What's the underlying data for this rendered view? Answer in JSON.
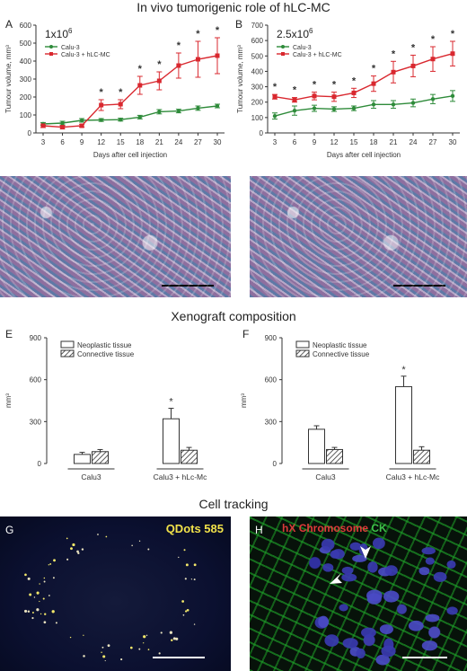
{
  "titles": {
    "main": "In vivo tumorigenic role of hLC-MC",
    "xenograft": "Xenograft composition",
    "tracking": "Cell tracking"
  },
  "panels": {
    "A": "A",
    "B": "B",
    "E": "E",
    "F": "F",
    "G": "G",
    "H": "H"
  },
  "colors": {
    "calu3": "#2e8b3a",
    "calu3_hlcmc": "#d9282f",
    "neoplastic_fill": "#ffffff",
    "connective_hatch": "#333333"
  },
  "chart_data": [
    {
      "type": "line",
      "panel": "A",
      "annotation": "1x10^6",
      "annotation_base": "1x10",
      "annotation_exp": "6",
      "xlabel": "Days after cell injection",
      "ylabel": "Tumour volume, mm³",
      "x": [
        3,
        6,
        9,
        12,
        15,
        18,
        21,
        24,
        27,
        30
      ],
      "x_ticks": [
        "3",
        "6",
        "9",
        "12",
        "15",
        "18",
        "21",
        "24",
        "27",
        "30"
      ],
      "ylim": [
        0,
        600
      ],
      "y_ticks": [
        "0",
        "100",
        "200",
        "300",
        "400",
        "500",
        "600"
      ],
      "legend": "top-left",
      "series": [
        {
          "name": "Calu-3",
          "color": "#2e8b3a",
          "values": [
            50,
            55,
            70,
            72,
            74,
            88,
            118,
            122,
            138,
            150
          ],
          "err": [
            8,
            10,
            10,
            8,
            8,
            10,
            12,
            10,
            12,
            10
          ]
        },
        {
          "name": "Calu-3 + hLC-MC",
          "color": "#d9282f",
          "values": [
            40,
            32,
            40,
            155,
            160,
            265,
            290,
            375,
            410,
            430
          ],
          "err": [
            10,
            8,
            8,
            30,
            25,
            50,
            50,
            70,
            100,
            100
          ]
        }
      ],
      "significance": [
        false,
        false,
        false,
        true,
        true,
        true,
        true,
        true,
        true,
        true
      ],
      "sig_label": "*"
    },
    {
      "type": "line",
      "panel": "B",
      "annotation": "2.5x10^6",
      "annotation_base": "2.5x10",
      "annotation_exp": "6",
      "xlabel": "Days after cell injection",
      "ylabel": "Tumour volume, mm³",
      "x": [
        3,
        6,
        9,
        12,
        15,
        18,
        21,
        24,
        27,
        30
      ],
      "x_ticks": [
        "3",
        "6",
        "9",
        "12",
        "15",
        "18",
        "21",
        "24",
        "27",
        "30"
      ],
      "ylim": [
        0,
        700
      ],
      "y_ticks": [
        "0",
        "100",
        "200",
        "300",
        "400",
        "500",
        "600",
        "700"
      ],
      "legend": "top-left",
      "series": [
        {
          "name": "Calu-3",
          "color": "#2e8b3a",
          "values": [
            110,
            145,
            160,
            155,
            160,
            185,
            185,
            195,
            220,
            240
          ],
          "err": [
            20,
            30,
            20,
            15,
            15,
            25,
            25,
            25,
            30,
            35
          ]
        },
        {
          "name": "Calu-3 + hLC-MC",
          "color": "#d9282f",
          "values": [
            235,
            215,
            240,
            235,
            260,
            320,
            395,
            435,
            480,
            515
          ],
          "err": [
            15,
            15,
            25,
            30,
            30,
            50,
            70,
            70,
            80,
            80
          ]
        }
      ],
      "significance": [
        true,
        true,
        true,
        true,
        true,
        true,
        true,
        true,
        true,
        true
      ],
      "sig_label": "*"
    },
    {
      "type": "bar",
      "panel": "E",
      "categories": [
        "Calu3",
        "Calu3 + hLc-Mc"
      ],
      "ylabel": "mm³",
      "ylim": [
        0,
        900
      ],
      "y_ticks": [
        "0",
        "300",
        "600",
        "900"
      ],
      "legend": "top",
      "series": [
        {
          "name": "Neoplastic tissue",
          "values": [
            65,
            320
          ],
          "err": [
            15,
            75
          ]
        },
        {
          "name": "Connective tissue",
          "values": [
            85,
            95
          ],
          "err": [
            15,
            20
          ]
        }
      ],
      "sig_label": "*",
      "significance": [
        [
          false,
          false
        ],
        [
          true,
          false
        ]
      ]
    },
    {
      "type": "bar",
      "panel": "F",
      "categories": [
        "Calu3",
        "Calu3 + hLc-Mc"
      ],
      "ylabel": "mm³",
      "ylim": [
        0,
        900
      ],
      "y_ticks": [
        "0",
        "300",
        "600",
        "900"
      ],
      "legend": "top",
      "series": [
        {
          "name": "Neoplastic tissue",
          "values": [
            245,
            550
          ],
          "err": [
            25,
            75
          ]
        },
        {
          "name": "Connective tissue",
          "values": [
            100,
            95
          ],
          "err": [
            15,
            25
          ]
        }
      ],
      "sig_label": "*",
      "significance": [
        [
          false,
          false
        ],
        [
          true,
          false
        ]
      ]
    }
  ],
  "images": {
    "G_label": "QDots 585",
    "H_label_hx": "hX",
    "H_label_chromosome": "Chromosome",
    "H_label_ck": "CK"
  }
}
